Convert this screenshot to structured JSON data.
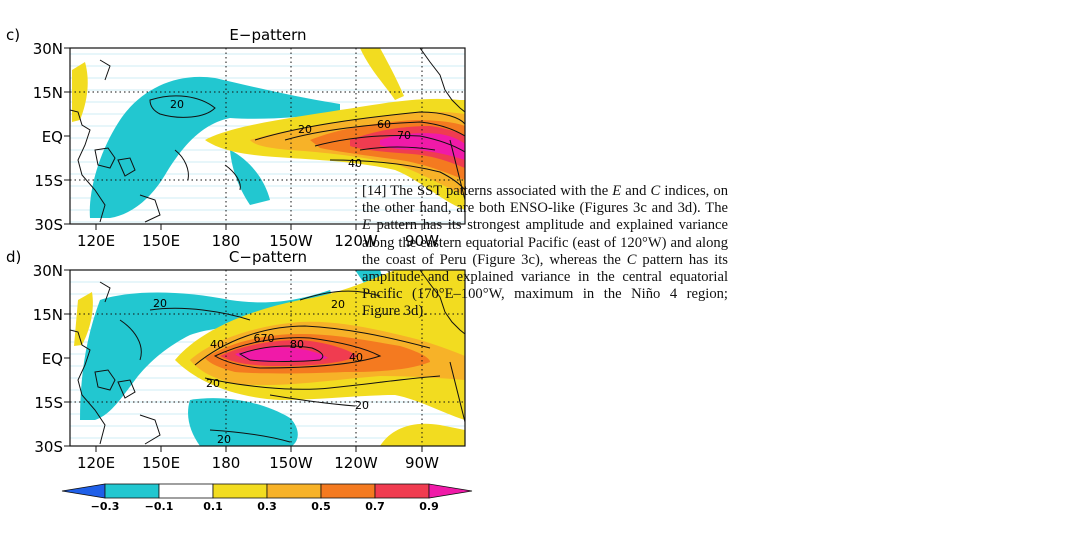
{
  "figure": {
    "panels": [
      {
        "letter": "c)",
        "title": "E−pattern",
        "lat_labels": [
          "30N",
          "15N",
          "EQ",
          "15S",
          "30S"
        ],
        "lon_labels": [
          "120E",
          "150E",
          "180",
          "150W",
          "120W",
          "90W"
        ],
        "contour_labels": [
          "20",
          "20",
          "60",
          "70",
          "40"
        ]
      },
      {
        "letter": "d)",
        "title": "C−pattern",
        "lat_labels": [
          "30N",
          "15N",
          "EQ",
          "15S",
          "30S"
        ],
        "lon_labels": [
          "120E",
          "150E",
          "180",
          "150W",
          "120W",
          "90W"
        ],
        "contour_labels": [
          "20",
          "20",
          "40",
          "670",
          "80",
          "40",
          "20",
          "20",
          "20"
        ]
      }
    ],
    "colorbar": {
      "labels": [
        "−0.3",
        "−0.1",
        "0.1",
        "0.3",
        "0.5",
        "0.7",
        "0.9"
      ],
      "colors": [
        "#1f5fe8",
        "#22c7d0",
        "#ffffff",
        "#f2dc20",
        "#f7b228",
        "#f47a20",
        "#f03c50",
        "#f01aa8"
      ]
    }
  },
  "paragraph": {
    "number": "[14]",
    "t1": "The SST patterns associated with the ",
    "E": "E",
    "t2": " and ",
    "C": "C",
    "t3": " indices, on the other hand, are both ENSO-like (Figures 3c and 3d). The ",
    "E2": "E",
    "t4": " pattern has its strongest amplitude and explained variance along the eastern equatorial Pacific (east of 120°W) and along the coast of Peru (Figure 3c), whereas the ",
    "C2": "C",
    "t5": " pattern has its amplitude and explained variance in the central equatorial Pacific (170°E–100°W, maximum in the Niño 4 region; Figure 3d)."
  }
}
